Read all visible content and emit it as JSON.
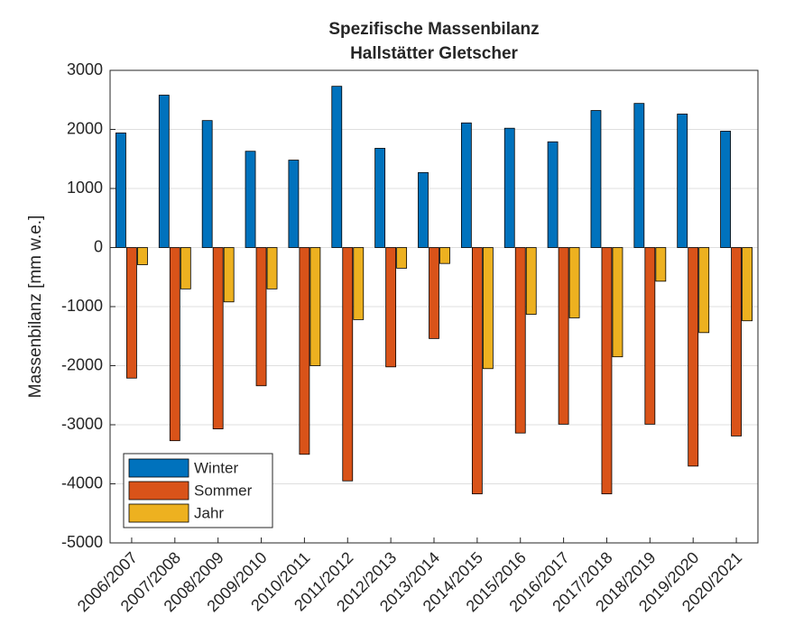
{
  "chart_data": {
    "type": "bar",
    "title": [
      "Spezifische Massenbilanz",
      "Hallstätter Gletscher"
    ],
    "y_label": "Massenbilanz [mm w.e.]",
    "categories": [
      "2006/2007",
      "2007/2008",
      "2008/2009",
      "2009/2010",
      "2010/2011",
      "2011/2012",
      "2012/2013",
      "2013/2014",
      "2014/2015",
      "2015/2016",
      "2016/2017",
      "2017/2018",
      "2018/2019",
      "2019/2020",
      "2020/2021"
    ],
    "series": [
      {
        "name": "Winter",
        "color": "#0072BD",
        "values": [
          1940,
          2580,
          2150,
          1630,
          1480,
          2730,
          1680,
          1270,
          2110,
          2020,
          1790,
          2320,
          2440,
          2260,
          1970
        ]
      },
      {
        "name": "Sommer",
        "color": "#D95319",
        "values": [
          -2210,
          -3270,
          -3070,
          -2340,
          -3500,
          -3950,
          -2020,
          -1540,
          -4170,
          -3140,
          -2990,
          -4170,
          -2990,
          -3700,
          -3190
        ]
      },
      {
        "name": "Jahr",
        "color": "#EDB120",
        "values": [
          -290,
          -700,
          -920,
          -700,
          -2000,
          -1220,
          -350,
          -270,
          -2050,
          -1130,
          -1190,
          -1850,
          -570,
          -1440,
          -1240
        ]
      }
    ],
    "ylim": [
      -5000,
      3000
    ],
    "yticks": [
      -5000,
      -4000,
      -3000,
      -2000,
      -1000,
      0,
      1000,
      2000,
      3000
    ],
    "grid": true,
    "legend": "lower-left"
  }
}
